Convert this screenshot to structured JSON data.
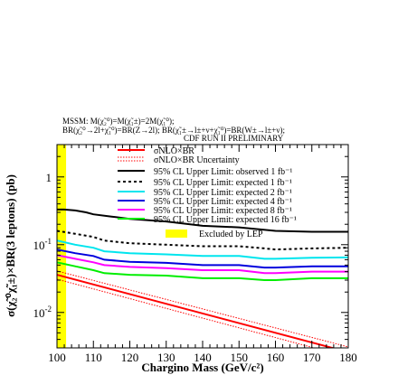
{
  "chart_data": {
    "type": "line",
    "header_lines": [
      "MSSM: M(χ̃₂⁰)=M(χ̃₁±)=2M(χ̃₁⁰);",
      "BR(χ̃₂⁰→2l+χ̃₁⁰)=BR(Z→2l);  BR(χ̃₁±→l±+ν+χ̃₁⁰)=BR(W±→l±+ν);"
    ],
    "title": "CDF RUN II PRELIMINARY",
    "xlabel": "Chargino Mass (GeV/c²)",
    "ylabel": "σ(χ̃₂⁰χ̃₁±)×BR(3 leptons) (pb)",
    "x_range": [
      100,
      180
    ],
    "y_range": [
      0.003,
      3.0
    ],
    "y_scale": "log",
    "x_ticks": [
      100,
      110,
      120,
      130,
      140,
      150,
      160,
      170,
      180
    ],
    "y_ticks": [
      {
        "value": 1,
        "base": "1",
        "exp": ""
      },
      {
        "value": 0.1,
        "base": "10",
        "exp": "-1"
      },
      {
        "value": 0.01,
        "base": "10",
        "exp": "-2"
      }
    ],
    "excluded_region": {
      "x": [
        100,
        102.5
      ],
      "color": "#ffff00",
      "label": "Excluded by LEP"
    },
    "band": {
      "name": "σNLO×BR Uncertainty",
      "color": "#ff0000",
      "x": [
        100,
        180
      ],
      "lower": [
        0.031,
        0.0022
      ],
      "upper": [
        0.041,
        0.0031
      ]
    },
    "series": [
      {
        "name": "σNLO×BR",
        "color": "#ff0000",
        "style": "solid",
        "x": [
          100,
          180
        ],
        "y": [
          0.036,
          0.0026
        ]
      },
      {
        "name": "95% CL Upper Limit: observed 1 fb⁻¹",
        "color": "#000000",
        "style": "solid",
        "x": [
          100,
          102,
          105,
          108,
          110,
          115,
          120,
          130,
          140,
          150,
          160,
          170,
          180
        ],
        "y": [
          0.33,
          0.33,
          0.32,
          0.3,
          0.28,
          0.26,
          0.24,
          0.22,
          0.19,
          0.18,
          0.16,
          0.155,
          0.155
        ]
      },
      {
        "name": "95% CL Upper Limit: expected 1 fb⁻¹",
        "color": "#000000",
        "style": "dashed",
        "x": [
          100,
          105,
          110,
          113,
          120,
          130,
          140,
          150,
          157,
          160,
          170,
          180
        ],
        "y": [
          0.16,
          0.145,
          0.13,
          0.115,
          0.105,
          0.1,
          0.095,
          0.095,
          0.088,
          0.085,
          0.088,
          0.09
        ]
      },
      {
        "name": "95% CL Upper Limit: expected 2 fb⁻¹",
        "color": "#00e5ee",
        "style": "solid",
        "x": [
          100,
          105,
          110,
          113,
          120,
          130,
          140,
          150,
          157,
          160,
          170,
          180
        ],
        "y": [
          0.115,
          0.1,
          0.09,
          0.08,
          0.075,
          0.072,
          0.068,
          0.068,
          0.062,
          0.062,
          0.064,
          0.065
        ]
      },
      {
        "name": "95% CL Upper Limit: expected 4 fb⁻¹",
        "color": "#0000dd",
        "style": "solid",
        "x": [
          100,
          105,
          110,
          113,
          120,
          130,
          140,
          150,
          157,
          160,
          170,
          180
        ],
        "y": [
          0.085,
          0.075,
          0.068,
          0.06,
          0.056,
          0.054,
          0.05,
          0.05,
          0.046,
          0.046,
          0.048,
          0.048
        ]
      },
      {
        "name": "95% CL Upper Limit: expected 8 fb⁻¹",
        "color": "#ff00ff",
        "style": "solid",
        "x": [
          100,
          105,
          110,
          113,
          120,
          130,
          140,
          150,
          157,
          160,
          170,
          180
        ],
        "y": [
          0.07,
          0.062,
          0.055,
          0.05,
          0.047,
          0.045,
          0.042,
          0.042,
          0.038,
          0.038,
          0.04,
          0.04
        ]
      },
      {
        "name": "95% CL Upper Limit: expected 16 fb⁻¹",
        "color": "#00ee00",
        "style": "solid",
        "x": [
          100,
          105,
          110,
          113,
          120,
          130,
          140,
          150,
          157,
          160,
          170,
          180
        ],
        "y": [
          0.055,
          0.048,
          0.042,
          0.038,
          0.036,
          0.035,
          0.032,
          0.032,
          0.03,
          0.03,
          0.032,
          0.032
        ]
      }
    ]
  }
}
